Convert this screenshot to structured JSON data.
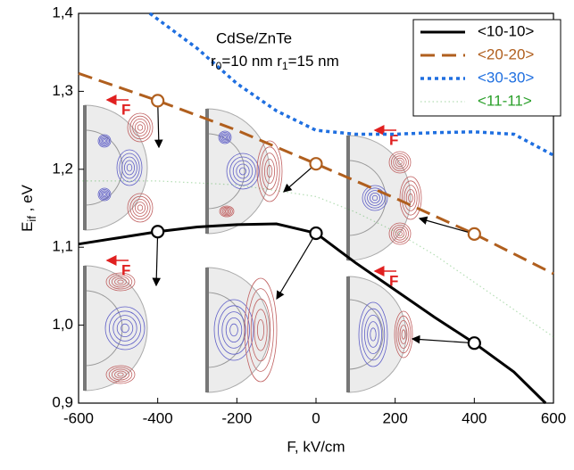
{
  "chart_data": {
    "type": "line",
    "annotation": {
      "title": "CdSe/ZnTe",
      "parts": [
        "r",
        "0",
        "=10 nm  r",
        "1",
        "=15 nm"
      ]
    },
    "inset_label": "F",
    "xlabel": "F, kV/cm",
    "ylabel": {
      "main": "E",
      "sub": "if",
      "rest": " ,  eV"
    },
    "xlim": [
      -600,
      600
    ],
    "ylim": [
      0.9,
      1.4
    ],
    "xticks": [
      -600,
      -400,
      -200,
      0,
      200,
      400,
      600
    ],
    "yticks": [
      {
        "value": 0.9,
        "label": "0,9"
      },
      {
        "value": 1.0,
        "label": "1,0"
      },
      {
        "value": 1.1,
        "label": "1,1"
      },
      {
        "value": 1.2,
        "label": "1,2"
      },
      {
        "value": 1.3,
        "label": "1,3"
      },
      {
        "value": 1.4,
        "label": "1,4"
      }
    ],
    "legend": "upper right",
    "series": [
      {
        "name": "<10-10>",
        "color": "#000000",
        "style": "solid",
        "x": [
          -600,
          -500,
          -400,
          -300,
          -200,
          -100,
          0,
          100,
          200,
          300,
          400,
          500,
          580
        ],
        "values": [
          1.104,
          1.112,
          1.12,
          1.126,
          1.129,
          1.13,
          1.118,
          1.08,
          1.045,
          1.01,
          0.977,
          0.94,
          0.9
        ],
        "markers_x": [
          -400,
          0,
          400
        ],
        "markers_y": [
          1.12,
          1.118,
          0.977
        ]
      },
      {
        "name": "<20-20>",
        "color": "#b05f1e",
        "style": "dash",
        "x": [
          -600,
          -400,
          -200,
          0,
          200,
          400,
          600
        ],
        "values": [
          1.323,
          1.288,
          1.25,
          1.207,
          1.163,
          1.117,
          1.066
        ],
        "markers_x": [
          -400,
          0,
          400
        ],
        "markers_y": [
          1.288,
          1.207,
          1.117
        ]
      },
      {
        "name": "<30-30>",
        "color": "#1f6fe0",
        "style": "dot",
        "x": [
          -420,
          -300,
          -200,
          -100,
          0,
          100,
          200,
          300,
          400,
          500,
          600
        ],
        "values": [
          1.4,
          1.355,
          1.31,
          1.275,
          1.25,
          1.245,
          1.245,
          1.247,
          1.248,
          1.245,
          1.218
        ]
      },
      {
        "name": "<11-11>",
        "color": "#2ca02c",
        "style": "faint",
        "x": [
          -600,
          -400,
          -200,
          0,
          100,
          200,
          300,
          400,
          500,
          600
        ],
        "values": [
          1.185,
          1.185,
          1.18,
          1.165,
          1.145,
          1.12,
          1.09,
          1.055,
          1.02,
          0.985
        ]
      }
    ]
  }
}
